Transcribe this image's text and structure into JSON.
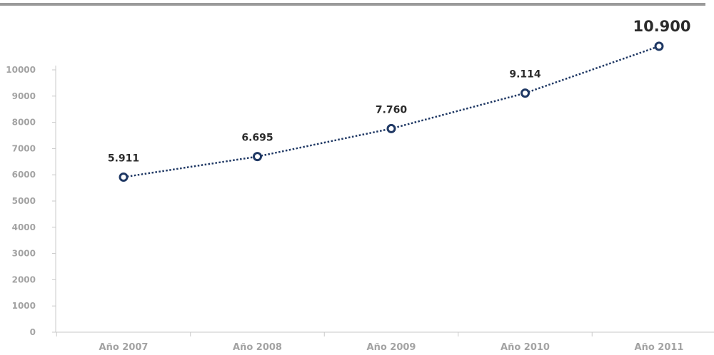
{
  "chart_data": {
    "type": "line",
    "categories": [
      "Año 2007",
      "Año 2008",
      "Año 2009",
      "Año 2010",
      "Año 2011"
    ],
    "values": [
      5911,
      6695,
      7760,
      9114,
      10900
    ],
    "data_labels": [
      "5.911",
      "6.695",
      "7.760",
      "9.114",
      "10.900"
    ],
    "y_ticks": [
      "0",
      "1000",
      "2000",
      "3000",
      "4000",
      "5000",
      "6000",
      "7000",
      "8000",
      "9000",
      "10000"
    ],
    "ylim": [
      0,
      10000
    ],
    "title": "",
    "xlabel": "",
    "ylabel": "",
    "grid": false,
    "line_style": "dotted",
    "colors": {
      "line": "#1f3864",
      "marker_fill": "#ffffff",
      "axis": "#c8c8c8",
      "tick_text": "#a3a3a3",
      "label_text": "#2b2b2b"
    }
  }
}
